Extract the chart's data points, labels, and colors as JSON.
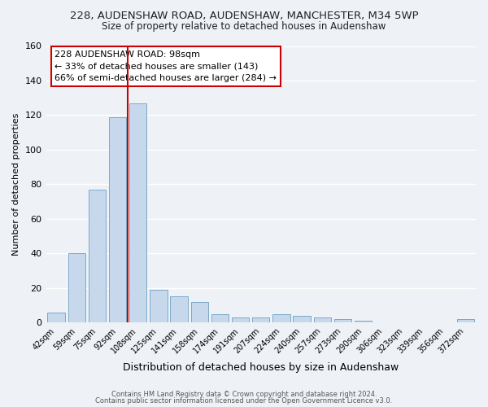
{
  "title_line1": "228, AUDENSHAW ROAD, AUDENSHAW, MANCHESTER, M34 5WP",
  "title_line2": "Size of property relative to detached houses in Audenshaw",
  "xlabel": "Distribution of detached houses by size in Audenshaw",
  "ylabel": "Number of detached properties",
  "bar_labels": [
    "42sqm",
    "59sqm",
    "75sqm",
    "92sqm",
    "108sqm",
    "125sqm",
    "141sqm",
    "158sqm",
    "174sqm",
    "191sqm",
    "207sqm",
    "224sqm",
    "240sqm",
    "257sqm",
    "273sqm",
    "290sqm",
    "306sqm",
    "323sqm",
    "339sqm",
    "356sqm",
    "372sqm"
  ],
  "bar_values": [
    6,
    40,
    77,
    119,
    127,
    19,
    15,
    12,
    5,
    3,
    3,
    5,
    4,
    3,
    2,
    1,
    0,
    0,
    0,
    0,
    2
  ],
  "bar_color": "#c8d8ec",
  "bar_edgecolor": "#7aaac8",
  "vline_x": 3.5,
  "vline_color": "#cc0000",
  "annotation_title": "228 AUDENSHAW ROAD: 98sqm",
  "annotation_line1": "← 33% of detached houses are smaller (143)",
  "annotation_line2": "66% of semi-detached houses are larger (284) →",
  "annotation_box_color": "#ffffff",
  "annotation_box_edgecolor": "#cc0000",
  "ylim": [
    0,
    160
  ],
  "yticks": [
    0,
    20,
    40,
    60,
    80,
    100,
    120,
    140,
    160
  ],
  "footnote1": "Contains HM Land Registry data © Crown copyright and database right 2024.",
  "footnote2": "Contains public sector information licensed under the Open Government Licence v3.0.",
  "background_color": "#eef2f7",
  "grid_color": "#ffffff"
}
